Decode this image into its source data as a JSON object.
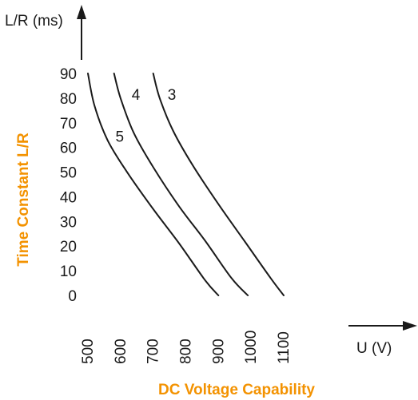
{
  "chart_data": {
    "type": "line",
    "title": "",
    "xlabel": "DC Voltage Capability",
    "ylabel": "Time Constant L/R",
    "x_unit_label": "U (V)",
    "y_unit_label": "L/R (ms)",
    "xlim": [
      500,
      1100
    ],
    "ylim": [
      0,
      90
    ],
    "x_ticks": [
      "500",
      "600",
      "700",
      "800",
      "900",
      "1000",
      "1100"
    ],
    "y_ticks": [
      "90",
      "80",
      "70",
      "60",
      "50",
      "40",
      "30",
      "20",
      "10",
      "0"
    ],
    "grid": false,
    "legend": "none",
    "series": [
      {
        "name": "3",
        "x": [
          700,
          720,
          760,
          820,
          900,
          980,
          1060,
          1100
        ],
        "y": [
          90,
          80,
          67,
          53,
          37,
          22,
          7,
          0
        ]
      },
      {
        "name": "4",
        "x": [
          580,
          600,
          640,
          700,
          780,
          860,
          940,
          990
        ],
        "y": [
          90,
          80,
          66,
          52,
          36,
          22,
          7,
          0
        ]
      },
      {
        "name": "5",
        "x": [
          500,
          520,
          560,
          620,
          700,
          780,
          860,
          900
        ],
        "y": [
          90,
          77,
          63,
          50,
          35,
          21,
          6,
          0
        ]
      }
    ]
  }
}
